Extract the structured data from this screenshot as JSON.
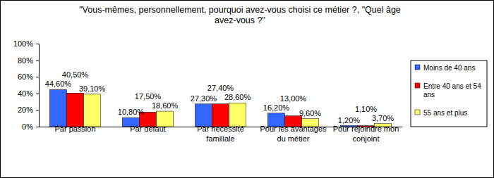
{
  "chart_data": {
    "type": "bar",
    "title": "\"Vous-mêmes, personnellement, pourquoi avez-vous choisi ce métier ?, \"Quel âge avez-vous ?\"",
    "categories": [
      "Par passion",
      "Par défaut",
      "Par nécessité familiale",
      "Pour les avantages du métier",
      "Pour rejoindre mon conjoint"
    ],
    "series": [
      {
        "name": "Moins de 40 ans",
        "color": "#3366ff",
        "values": [
          44.6,
          10.8,
          27.3,
          16.2,
          1.2
        ],
        "value_labels": [
          "44,60%",
          "10,80%",
          "27,30%",
          "16,20%",
          "1,20%"
        ]
      },
      {
        "name": "Entre 40 ans et 54 ans",
        "color": "#ff0000",
        "values": [
          40.5,
          17.5,
          27.4,
          13.0,
          1.1
        ],
        "value_labels": [
          "40,50%",
          "17,50%",
          "27,40%",
          "13,00%",
          "1,10%"
        ]
      },
      {
        "name": "55 ans et plus",
        "color": "#ffff66",
        "values": [
          39.1,
          18.6,
          28.6,
          9.6,
          3.7
        ],
        "value_labels": [
          "39,10%",
          "18,60%",
          "28,60%",
          "9,60%",
          "3,70%"
        ]
      }
    ],
    "ylim": [
      0,
      100
    ],
    "yticks": [
      {
        "value": 0,
        "label": "0%"
      },
      {
        "value": 20,
        "label": "20%"
      },
      {
        "value": 40,
        "label": "40%"
      },
      {
        "value": 60,
        "label": "60%"
      },
      {
        "value": 80,
        "label": "80%"
      },
      {
        "value": 100,
        "label": "100%"
      }
    ],
    "grid": false,
    "legend": "right",
    "data_labels": true
  }
}
